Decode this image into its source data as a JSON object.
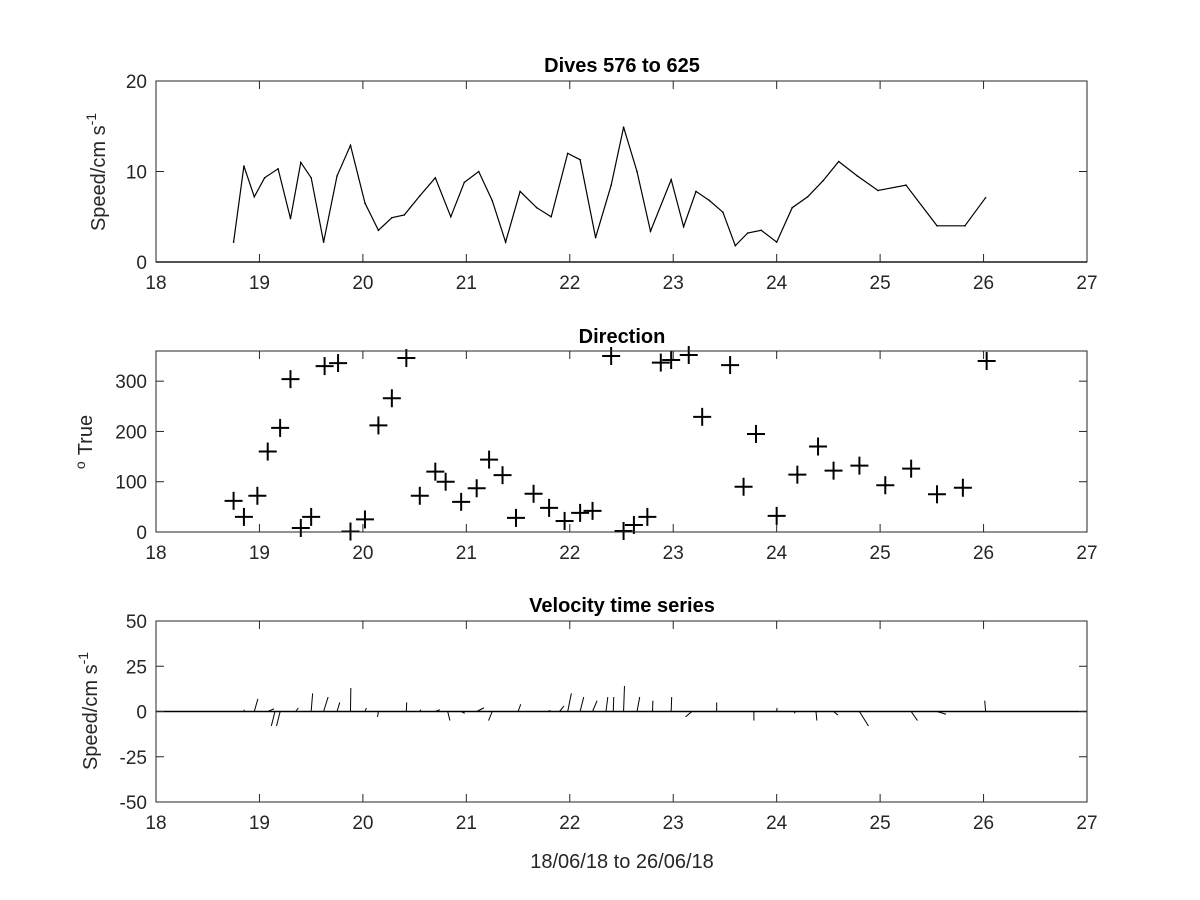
{
  "chart_data": [
    {
      "type": "line",
      "title": "Dives 576 to 625",
      "xlabel": "",
      "ylabel": "Speed/cm s",
      "ylabel_superscript": "-1",
      "xlim": [
        18,
        27
      ],
      "ylim": [
        0,
        20
      ],
      "xticks": [
        "18",
        "19",
        "20",
        "21",
        "22",
        "23",
        "24",
        "25",
        "26",
        "27"
      ],
      "yticks": [
        "0",
        "10",
        "20"
      ],
      "grid": false,
      "series": [
        {
          "x": [
            18.75,
            18.85,
            18.95,
            19.05,
            19.18,
            19.3,
            19.4,
            19.5,
            19.62,
            19.75,
            19.88,
            20.02,
            20.15,
            20.28,
            20.4,
            20.55,
            20.7,
            20.85,
            20.98,
            21.12,
            21.25,
            21.38,
            21.52,
            21.68,
            21.82,
            21.98,
            22.1,
            22.25,
            22.4,
            22.52,
            22.65,
            22.78,
            22.98,
            23.1,
            23.22,
            23.35,
            23.48,
            23.6,
            23.72,
            23.85,
            24.0,
            24.15,
            24.3,
            24.45,
            24.6,
            24.78,
            24.98,
            25.25,
            25.55,
            25.82,
            26.02
          ],
          "y": [
            2.2,
            10.6,
            7.2,
            9.3,
            10.3,
            4.8,
            11.0,
            9.3,
            2.2,
            9.5,
            12.9,
            6.5,
            3.5,
            4.9,
            5.2,
            7.3,
            9.3,
            5.0,
            8.8,
            10.0,
            6.8,
            2.2,
            7.8,
            6.0,
            5.0,
            12.0,
            11.3,
            2.7,
            8.5,
            14.9,
            10.0,
            3.4,
            9.1,
            3.9,
            7.8,
            6.8,
            5.5,
            1.8,
            3.2,
            3.5,
            2.2,
            6.0,
            7.2,
            9.0,
            11.1,
            9.5,
            7.9,
            8.5,
            4.0,
            4.0,
            7.1
          ]
        }
      ],
      "baseline": 0
    },
    {
      "type": "scatter",
      "title": "Direction",
      "xlabel": "",
      "ylabel": "True",
      "ylabel_superscript": "o",
      "xlim": [
        18,
        27
      ],
      "ylim": [
        0,
        360
      ],
      "xticks": [
        "18",
        "19",
        "20",
        "21",
        "22",
        "23",
        "24",
        "25",
        "26",
        "27"
      ],
      "yticks": [
        "0",
        "100",
        "200",
        "300"
      ],
      "grid": false,
      "marker": "+",
      "series": [
        {
          "x": [
            18.75,
            18.85,
            18.98,
            19.08,
            19.2,
            19.3,
            19.4,
            19.5,
            19.63,
            19.76,
            19.88,
            20.02,
            20.15,
            20.28,
            20.42,
            20.55,
            20.7,
            20.8,
            20.95,
            21.1,
            21.22,
            21.35,
            21.48,
            21.65,
            21.8,
            21.95,
            22.1,
            22.22,
            22.4,
            22.52,
            22.62,
            22.75,
            22.88,
            22.98,
            23.15,
            23.28,
            23.55,
            23.68,
            23.8,
            24.0,
            24.2,
            24.4,
            24.55,
            24.8,
            25.05,
            25.3,
            25.55,
            25.8,
            26.03
          ],
          "y": [
            62,
            30,
            72,
            160,
            207,
            304,
            8,
            30,
            330,
            336,
            1,
            25,
            212,
            266,
            346,
            72,
            120,
            100,
            60,
            87,
            144,
            113,
            28,
            76,
            48,
            22,
            38,
            42,
            350,
            2,
            14,
            30,
            337,
            342,
            352,
            229,
            332,
            90,
            195,
            32,
            114,
            170,
            122,
            132,
            93,
            126,
            75,
            88,
            340
          ]
        }
      ]
    },
    {
      "type": "line",
      "title": "Velocity time series",
      "xlabel": "18/06/18 to 26/06/18",
      "ylabel": "Speed/cm s",
      "ylabel_superscript": "-1",
      "xlim": [
        18,
        27
      ],
      "ylim": [
        -50,
        50
      ],
      "xticks": [
        "18",
        "19",
        "20",
        "21",
        "22",
        "23",
        "24",
        "25",
        "26",
        "27"
      ],
      "yticks": [
        "50",
        "25",
        "0",
        "-25",
        "-50"
      ],
      "grid": false,
      "baseline": 0,
      "note": "stick plot",
      "series": [
        {
          "x": [
            18.85,
            18.95,
            19.08,
            19.15,
            19.2,
            19.35,
            19.5,
            19.62,
            19.75,
            19.88,
            20.02,
            20.15,
            20.28,
            20.42,
            20.55,
            20.7,
            20.82,
            20.95,
            21.1,
            21.25,
            21.35,
            21.5,
            21.62,
            21.78,
            21.9,
            21.98,
            22.1,
            22.22,
            22.35,
            22.42,
            22.52,
            22.65,
            22.8,
            22.98,
            23.18,
            23.42,
            23.6,
            23.78,
            24.0,
            24.18,
            24.38,
            24.55,
            24.8,
            25.05,
            25.3,
            25.55,
            25.7,
            26.02
          ],
          "u": [
            0.2,
            2.0,
            3.5,
            -2.0,
            -2.0,
            1.5,
            0.8,
            2.5,
            1.5,
            0.2,
            0.8,
            -0.5,
            0.0,
            0.2,
            0.5,
            2.5,
            1.2,
            2.0,
            4.0,
            -2.0,
            0.0,
            1.5,
            0.5,
            2.0,
            2.5,
            2.0,
            2.0,
            2.5,
            1.0,
            0.3,
            0.5,
            1.5,
            0.2,
            0.3,
            -3.5,
            0.0,
            0.0,
            0.0,
            0.2,
            -0.5,
            0.5,
            2.5,
            5.0,
            -2.0,
            3.5,
            5.0,
            0.0,
            -0.5
          ],
          "v": [
            1.0,
            7.0,
            1.5,
            -8.0,
            -8.0,
            2.0,
            10.0,
            8.0,
            5.0,
            13.0,
            2.0,
            -3.0,
            0.0,
            5.0,
            1.0,
            1.0,
            -5.0,
            -1.0,
            2.0,
            -5.0,
            0.0,
            4.0,
            0.0,
            0.5,
            3.0,
            10.0,
            8.0,
            6.0,
            8.0,
            8.0,
            14.0,
            8.0,
            6.0,
            8.0,
            -3.0,
            5.0,
            0.0,
            -5.0,
            2.0,
            -1.0,
            -5.0,
            -2.0,
            -8.0,
            0.0,
            -5.0,
            -1.5,
            0.0,
            6.0
          ]
        }
      ]
    }
  ]
}
